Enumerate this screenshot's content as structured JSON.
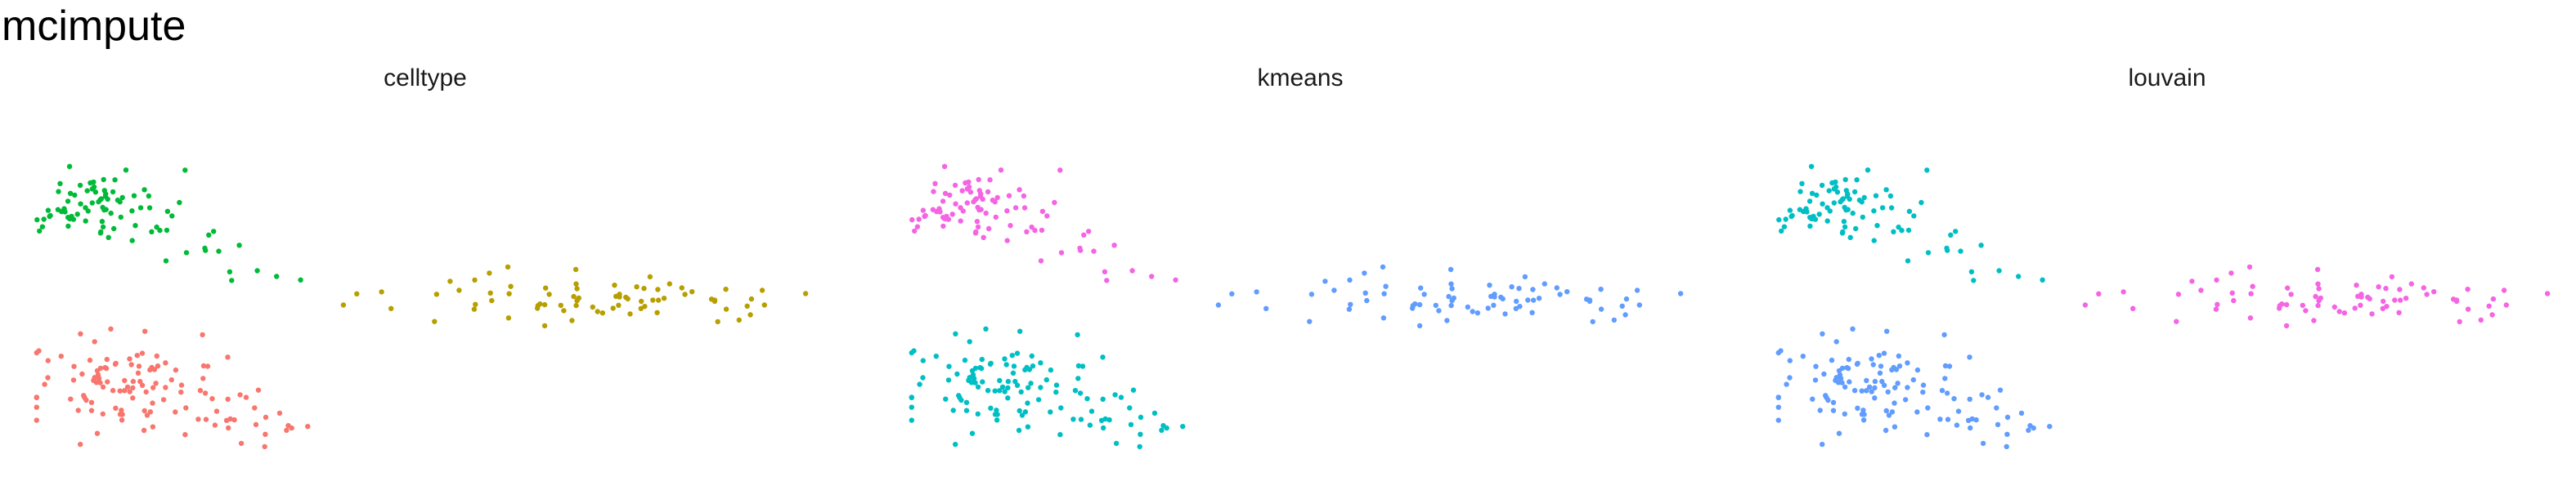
{
  "title": "mcimpute",
  "colors": {
    "pink": "#F8766D",
    "green": "#00BA38",
    "blue": "#619CFF",
    "gold": "#B79F00",
    "cyan": "#00BFC4",
    "magenta": "#F564E3"
  },
  "chart_data": [
    {
      "type": "scatter",
      "title": "celltype",
      "xlabel": "",
      "ylabel": "",
      "grid": false,
      "xlim": [
        0,
        10
      ],
      "ylim": [
        0,
        10
      ],
      "clusters": [
        {
          "color": "#00BA38",
          "n": 90,
          "seed": 11,
          "cx": 0.9,
          "cy": 7.1,
          "sx": 0.45,
          "sy": 0.45,
          "tail_dx": 2.4,
          "tail_dy": -2.1,
          "tail_frac": 0.22
        },
        {
          "color": "#F8766D",
          "n": 120,
          "seed": 23,
          "cx": 1.3,
          "cy": 2.3,
          "sx": 0.65,
          "sy": 0.6,
          "tail_dx": 2.2,
          "tail_dy": -1.5,
          "tail_frac": 0.22
        },
        {
          "color": "#B79F00",
          "n": 75,
          "seed": 37,
          "cx": 7.2,
          "cy": 4.6,
          "sx": 1.3,
          "sy": 0.32,
          "tail_dx": 2.0,
          "tail_dy": -0.5,
          "tail_frac": 0.15
        }
      ]
    },
    {
      "type": "scatter",
      "title": "kmeans",
      "xlabel": "",
      "ylabel": "",
      "grid": false,
      "xlim": [
        0,
        10
      ],
      "ylim": [
        0,
        10
      ],
      "clusters": [
        {
          "color": "#F564E3",
          "n": 90,
          "seed": 11,
          "cx": 0.9,
          "cy": 7.1,
          "sx": 0.45,
          "sy": 0.45,
          "tail_dx": 2.4,
          "tail_dy": -2.1,
          "tail_frac": 0.22
        },
        {
          "color": "#00BFC4",
          "n": 120,
          "seed": 23,
          "cx": 1.3,
          "cy": 2.3,
          "sx": 0.65,
          "sy": 0.6,
          "tail_dx": 2.2,
          "tail_dy": -1.5,
          "tail_frac": 0.22
        },
        {
          "color": "#619CFF",
          "n": 75,
          "seed": 37,
          "cx": 7.2,
          "cy": 4.6,
          "sx": 1.3,
          "sy": 0.32,
          "tail_dx": 2.0,
          "tail_dy": -0.5,
          "tail_frac": 0.15
        }
      ]
    },
    {
      "type": "scatter",
      "title": "louvain",
      "xlabel": "",
      "ylabel": "",
      "grid": false,
      "xlim": [
        0,
        10
      ],
      "ylim": [
        0,
        10
      ],
      "clusters": [
        {
          "color": "#00BFC4",
          "n": 90,
          "seed": 11,
          "cx": 0.9,
          "cy": 7.1,
          "sx": 0.45,
          "sy": 0.45,
          "tail_dx": 2.4,
          "tail_dy": -2.1,
          "tail_frac": 0.22
        },
        {
          "color": "#619CFF",
          "n": 120,
          "seed": 23,
          "cx": 1.3,
          "cy": 2.3,
          "sx": 0.65,
          "sy": 0.6,
          "tail_dx": 2.2,
          "tail_dy": -1.5,
          "tail_frac": 0.22
        },
        {
          "color": "#F564E3",
          "n": 75,
          "seed": 37,
          "cx": 7.2,
          "cy": 4.6,
          "sx": 1.3,
          "sy": 0.32,
          "tail_dx": 2.0,
          "tail_dy": -0.5,
          "tail_frac": 0.15
        }
      ]
    }
  ]
}
